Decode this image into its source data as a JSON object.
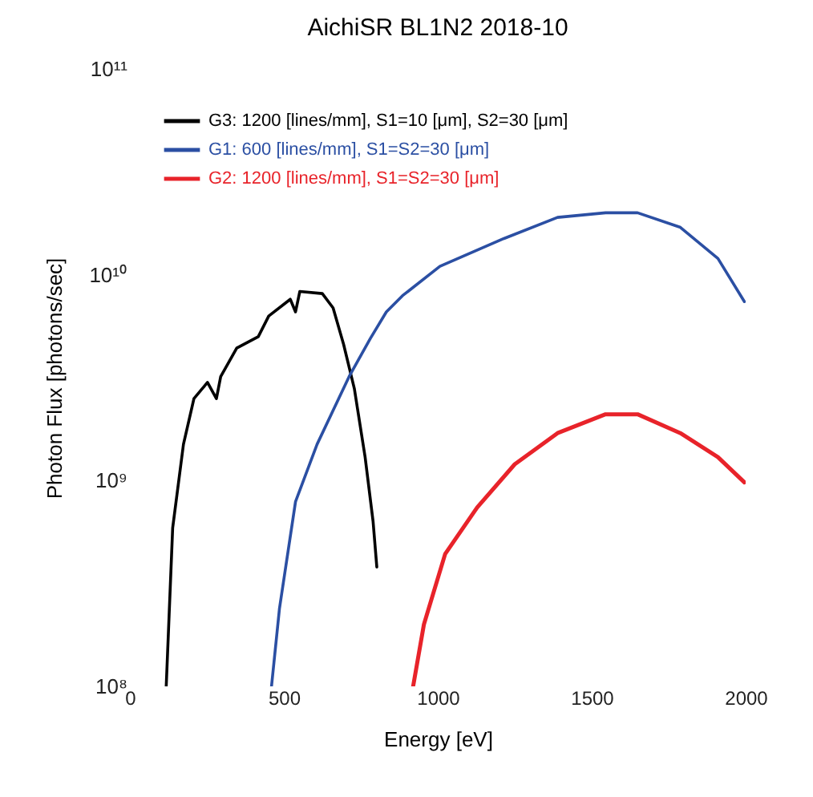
{
  "chart_data": {
    "type": "line",
    "title": "AichiSR BL1N2 2018-10",
    "xlabel": "Energy [eV]",
    "ylabel": "Photon Flux [photons/sec]",
    "log": true,
    "legend": "top left",
    "grid": false,
    "marker": "none",
    "line_style": "solid",
    "xlim": [
      0,
      2000
    ],
    "xticks": [
      0,
      500,
      1000,
      1500,
      2000
    ],
    "ylim": [
      100000000.0,
      100000000000.0
    ],
    "yticks": [
      {
        "value": 100000000.0,
        "label": "10⁸"
      },
      {
        "value": 1000000000.0,
        "label": "10⁹"
      },
      {
        "value": 10000000000.0,
        "label": "10¹⁰"
      },
      {
        "value": 100000000000.0,
        "label": "10¹¹"
      }
    ],
    "series": [
      {
        "name": "G3: 1200 [lines/mm], S1=10 [μm], S2=30 [μm]",
        "color": "#000000",
        "x": [
          118,
          139,
          174,
          208,
          252,
          281,
          295,
          347,
          417,
          451,
          521,
          538,
          552,
          625,
          660,
          694,
          729,
          764,
          790,
          802
        ],
        "values": [
          100000000.0,
          590000000.0,
          1500000000.0,
          2500000000.0,
          3000000000.0,
          2500000000.0,
          3200000000.0,
          4400000000.0,
          5000000000.0,
          6300000000.0,
          7600000000.0,
          6600000000.0,
          8300000000.0,
          8100000000.0,
          6900000000.0,
          4600000000.0,
          2800000000.0,
          1300000000.0,
          630000000.0,
          380000000.0
        ]
      },
      {
        "name": "G1: 600 [lines/mm], S1=S2=30 [μm]",
        "color": "#2b4fa3",
        "x": [
          460,
          486,
          538,
          608,
          712,
          781,
          833,
          885,
          1007,
          1215,
          1389,
          1545,
          1649,
          1788,
          1910,
          1996
        ],
        "values": [
          100000000.0,
          240000000.0,
          790000000.0,
          1500000000.0,
          3200000000.0,
          4900000000.0,
          6600000000.0,
          7900000000.0,
          11000000000.0,
          15000000000.0,
          19000000000.0,
          20000000000.0,
          20000000000.0,
          17000000000.0,
          12000000000.0,
          7400000000.0
        ]
      },
      {
        "name": "G2: 1200 [lines/mm], S1=S2=30 [μm]",
        "color": "#e8232a",
        "x": [
          920,
          955,
          1024,
          1128,
          1250,
          1389,
          1545,
          1649,
          1788,
          1910,
          1996
        ],
        "values": [
          100000000.0,
          200000000.0,
          440000000.0,
          740000000.0,
          1200000000.0,
          1700000000.0,
          2100000000.0,
          2100000000.0,
          1700000000.0,
          1300000000.0,
          980000000.0
        ]
      }
    ]
  }
}
